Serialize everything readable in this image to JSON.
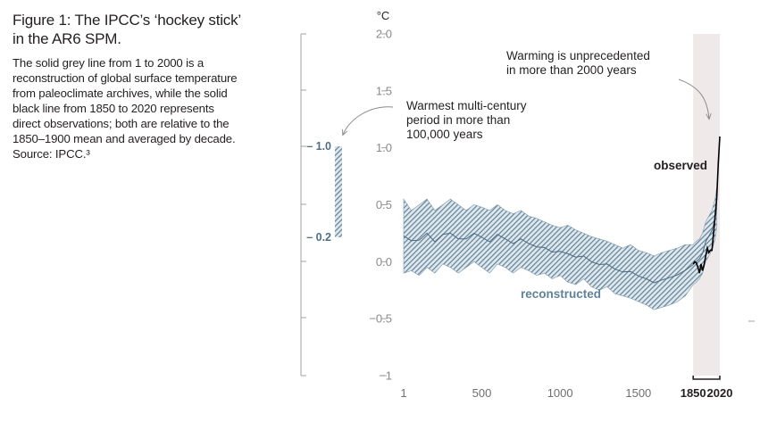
{
  "caption": {
    "title": "Figure 1: The IPCC’s ‘hockey stick’ in the AR6 SPM.",
    "body": "The solid grey line from 1 to 2000 is a reconstruction of global surface temperature from paleoclimate archives, while the solid black line from 1850 to 2020 represents direct observations; both are relative to the 1850–1900 mean and averaged by decade. Source: IPCC.³"
  },
  "chart_data": {
    "type": "line",
    "title": "",
    "xlabel": "",
    "ylabel": "°C",
    "xlim": [
      1,
      2020
    ],
    "ylim": [
      -1,
      2.0
    ],
    "yticks": [
      -1,
      -0.5,
      0.0,
      0.5,
      1.0,
      1.5,
      2.0
    ],
    "ytick_labels": [
      "−1",
      "−0.5",
      "0.0",
      "0.5",
      "1.0",
      "1.5",
      "2.0"
    ],
    "xticks": [
      1,
      500,
      1000,
      1500,
      1850,
      2020
    ],
    "xtick_labels": [
      "1",
      "500",
      "1000",
      "1500",
      "1850",
      "2020"
    ],
    "bold_xtick_labels": [
      "1850",
      "2020"
    ],
    "highlight_period": [
      1850,
      2020
    ],
    "grid": false,
    "colors": {
      "reconstructed": "#5f8299",
      "observed": "#000000",
      "highlight": "#efe9e9",
      "axis": "#9a9a9a"
    },
    "series": [
      {
        "name": "reconstructed",
        "band": true,
        "x": [
          1,
          50,
          100,
          150,
          200,
          250,
          300,
          350,
          400,
          450,
          500,
          550,
          600,
          650,
          700,
          750,
          800,
          850,
          900,
          950,
          1000,
          1050,
          1100,
          1150,
          1200,
          1250,
          1300,
          1350,
          1400,
          1450,
          1500,
          1550,
          1600,
          1650,
          1700,
          1750,
          1800,
          1850,
          1870,
          1890,
          1910,
          1930,
          1950,
          1970,
          1990,
          2000
        ],
        "lower": [
          -0.1,
          -0.08,
          -0.12,
          -0.05,
          -0.1,
          -0.02,
          -0.05,
          -0.1,
          -0.05,
          0.0,
          -0.05,
          -0.1,
          -0.02,
          -0.05,
          -0.1,
          -0.05,
          -0.08,
          -0.12,
          -0.1,
          -0.15,
          -0.12,
          -0.18,
          -0.2,
          -0.15,
          -0.22,
          -0.25,
          -0.22,
          -0.28,
          -0.3,
          -0.32,
          -0.35,
          -0.38,
          -0.42,
          -0.4,
          -0.38,
          -0.35,
          -0.3,
          -0.2,
          -0.18,
          -0.15,
          -0.1,
          0.0,
          0.05,
          0.1,
          0.2,
          0.3
        ],
        "upper": [
          0.55,
          0.45,
          0.5,
          0.55,
          0.45,
          0.5,
          0.55,
          0.5,
          0.45,
          0.5,
          0.48,
          0.45,
          0.5,
          0.45,
          0.42,
          0.45,
          0.4,
          0.38,
          0.35,
          0.32,
          0.3,
          0.32,
          0.28,
          0.25,
          0.22,
          0.2,
          0.18,
          0.15,
          0.12,
          0.15,
          0.1,
          0.08,
          0.05,
          0.08,
          0.1,
          0.12,
          0.15,
          0.15,
          0.18,
          0.2,
          0.25,
          0.35,
          0.4,
          0.45,
          0.55,
          0.65
        ]
      },
      {
        "name": "observed",
        "x": [
          1850,
          1860,
          1870,
          1880,
          1890,
          1900,
          1910,
          1920,
          1930,
          1940,
          1950,
          1960,
          1970,
          1980,
          1990,
          2000,
          2010,
          2020
        ],
        "values": [
          -0.02,
          0.0,
          -0.01,
          -0.05,
          -0.1,
          -0.02,
          -0.08,
          -0.02,
          0.05,
          0.12,
          0.08,
          0.1,
          0.1,
          0.25,
          0.4,
          0.55,
          0.85,
          1.1
        ]
      }
    ],
    "range_bar": {
      "low": 0.2,
      "high": 1.0,
      "low_label": "0.2",
      "high_label": "1.0"
    },
    "annotations": [
      {
        "id": "unprecedented",
        "lines": [
          "Warming is unprecedented",
          "in more than 2000 years"
        ]
      },
      {
        "id": "warmest",
        "lines": [
          "Warmest multi-century",
          "period in more than",
          "100,000 years"
        ]
      }
    ]
  }
}
